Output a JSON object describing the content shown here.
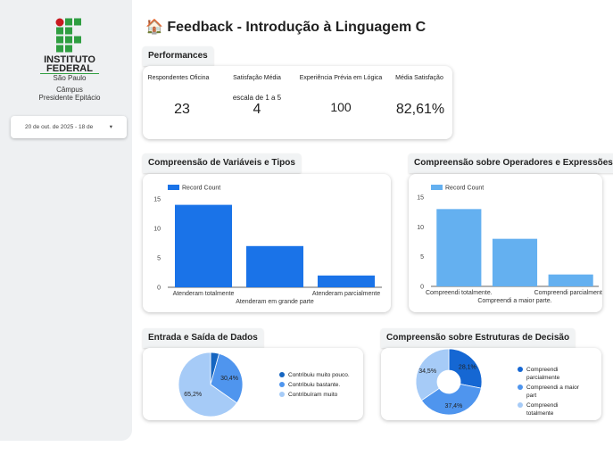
{
  "sidebar": {
    "logo": {
      "line1": "INSTITUTO",
      "line2": "FEDERAL",
      "line3": "São Paulo",
      "line4": "Câmpus",
      "line5": "Presidente Epitácio"
    },
    "date_range": "20 de out. de 2025 - 18 de"
  },
  "header": {
    "title": "🏠 Feedback - Introdução à Linguagem C"
  },
  "performances": {
    "tab": "Performances",
    "kpis": [
      {
        "label": "Respondentes Oficina",
        "value": "23"
      },
      {
        "label": "Satisfação Média",
        "subtitle": "escala de 1 a 5",
        "value": "4"
      },
      {
        "label": "Experiência Prévia em Lógica",
        "value": "100"
      },
      {
        "label": "Média Satisfação",
        "value": "82,61%"
      }
    ]
  },
  "chart_data": [
    {
      "type": "bar",
      "title": "Compreensão de Variáveis e Tipos",
      "categories": [
        "Atenderam totalmente",
        "Atenderam em grande parte",
        "Atenderam parcialmente"
      ],
      "series": [
        {
          "name": "Record Count",
          "color": "#1a73e8",
          "values": [
            14,
            7,
            2
          ]
        }
      ],
      "ylim": [
        0,
        15
      ],
      "yticks": [
        0,
        5,
        10,
        15
      ]
    },
    {
      "type": "bar",
      "title": "Compreensão sobre Operadores e Expressões",
      "categories": [
        "Compreendi totalmente.",
        "Compreendi a maior parte.",
        "Compreendi parcialmente."
      ],
      "series": [
        {
          "name": "Record Count",
          "color": "#64b0f0",
          "values": [
            13,
            8,
            2
          ]
        }
      ],
      "ylim": [
        0,
        15
      ],
      "yticks": [
        0,
        5,
        10,
        15
      ]
    },
    {
      "type": "pie",
      "title": "Entrada e Saída de Dados",
      "categories": [
        "Contribuiu muito pouco.",
        "Contribuiu bastante.",
        "Contribuíram muito"
      ],
      "values": [
        4.3,
        30.4,
        65.2
      ],
      "value_labels": [
        null,
        "30,4%",
        "65,2%"
      ],
      "colors": [
        "#1565c0",
        "#4f95ee",
        "#a6cbf7"
      ]
    },
    {
      "type": "donut",
      "title": "Compreensão sobre Estruturas de Decisão",
      "categories": [
        "Compreendi parcialmente",
        "Compreendi a maior part",
        "Compreendi totalmente"
      ],
      "values": [
        28.1,
        37.4,
        34.5
      ],
      "value_labels": [
        "28,1%",
        "37,4%",
        "34,5%"
      ],
      "colors": [
        "#1567d3",
        "#4f95ee",
        "#a6cbf7"
      ]
    }
  ]
}
